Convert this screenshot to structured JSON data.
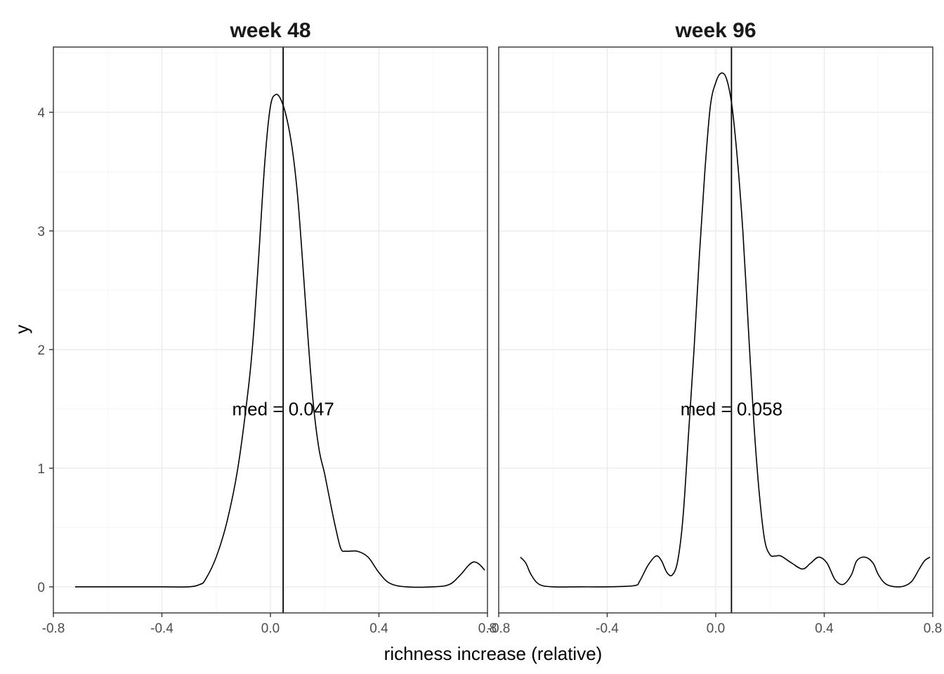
{
  "chart_data": {
    "type": "line",
    "xlabel": "richness increase (relative)",
    "ylabel": "y",
    "xlim": [
      -0.8,
      0.8
    ],
    "ylim": [
      -0.22,
      4.55
    ],
    "x_ticks": [
      -0.8,
      -0.4,
      0.0,
      0.4,
      0.8
    ],
    "x_tick_labels": [
      "-0.8",
      "-0.4",
      "0.0",
      "0.4",
      "0.8"
    ],
    "y_ticks": [
      0,
      1,
      2,
      3,
      4
    ],
    "y_tick_labels": [
      "0",
      "1",
      "2",
      "3",
      "4"
    ],
    "grid": true,
    "facets": [
      {
        "title": "week 48",
        "median": 0.047,
        "annotation": "med = 0.047",
        "annotation_y": 1.5,
        "x": [
          -0.72,
          -0.6,
          -0.5,
          -0.4,
          -0.3,
          -0.26,
          -0.24,
          -0.2,
          -0.16,
          -0.12,
          -0.08,
          -0.06,
          -0.04,
          -0.02,
          0.0,
          0.02,
          0.04,
          0.06,
          0.08,
          0.1,
          0.12,
          0.14,
          0.16,
          0.18,
          0.2,
          0.22,
          0.24,
          0.26,
          0.28,
          0.32,
          0.36,
          0.4,
          0.44,
          0.5,
          0.6,
          0.66,
          0.7,
          0.73,
          0.75,
          0.77,
          0.79
        ],
        "y": [
          0,
          0,
          0,
          0,
          0,
          0.02,
          0.06,
          0.25,
          0.55,
          1.0,
          1.7,
          2.2,
          2.9,
          3.6,
          4.05,
          4.15,
          4.1,
          3.95,
          3.7,
          3.3,
          2.7,
          2.05,
          1.5,
          1.15,
          0.95,
          0.72,
          0.5,
          0.32,
          0.3,
          0.3,
          0.25,
          0.12,
          0.03,
          0,
          0,
          0.02,
          0.1,
          0.18,
          0.21,
          0.19,
          0.14
        ]
      },
      {
        "title": "week 96",
        "median": 0.058,
        "annotation": "med = 0.058",
        "annotation_y": 1.5,
        "x": [
          -0.72,
          -0.7,
          -0.68,
          -0.65,
          -0.6,
          -0.5,
          -0.4,
          -0.3,
          -0.28,
          -0.25,
          -0.22,
          -0.2,
          -0.18,
          -0.16,
          -0.14,
          -0.12,
          -0.1,
          -0.08,
          -0.06,
          -0.04,
          -0.02,
          0.0,
          0.02,
          0.04,
          0.06,
          0.08,
          0.1,
          0.12,
          0.14,
          0.16,
          0.18,
          0.2,
          0.22,
          0.24,
          0.28,
          0.32,
          0.35,
          0.38,
          0.41,
          0.44,
          0.47,
          0.5,
          0.52,
          0.55,
          0.58,
          0.6,
          0.63,
          0.68,
          0.72,
          0.75,
          0.77,
          0.79
        ],
        "y": [
          0.25,
          0.2,
          0.1,
          0.02,
          0,
          0,
          0,
          0.01,
          0.05,
          0.18,
          0.26,
          0.22,
          0.12,
          0.1,
          0.22,
          0.6,
          1.3,
          2.0,
          2.8,
          3.5,
          4.05,
          4.25,
          4.33,
          4.28,
          4.05,
          3.6,
          3.0,
          2.2,
          1.4,
          0.8,
          0.4,
          0.27,
          0.26,
          0.26,
          0.2,
          0.15,
          0.2,
          0.25,
          0.2,
          0.06,
          0.02,
          0.1,
          0.22,
          0.25,
          0.2,
          0.1,
          0.02,
          0.0,
          0.04,
          0.15,
          0.22,
          0.25
        ]
      }
    ]
  }
}
